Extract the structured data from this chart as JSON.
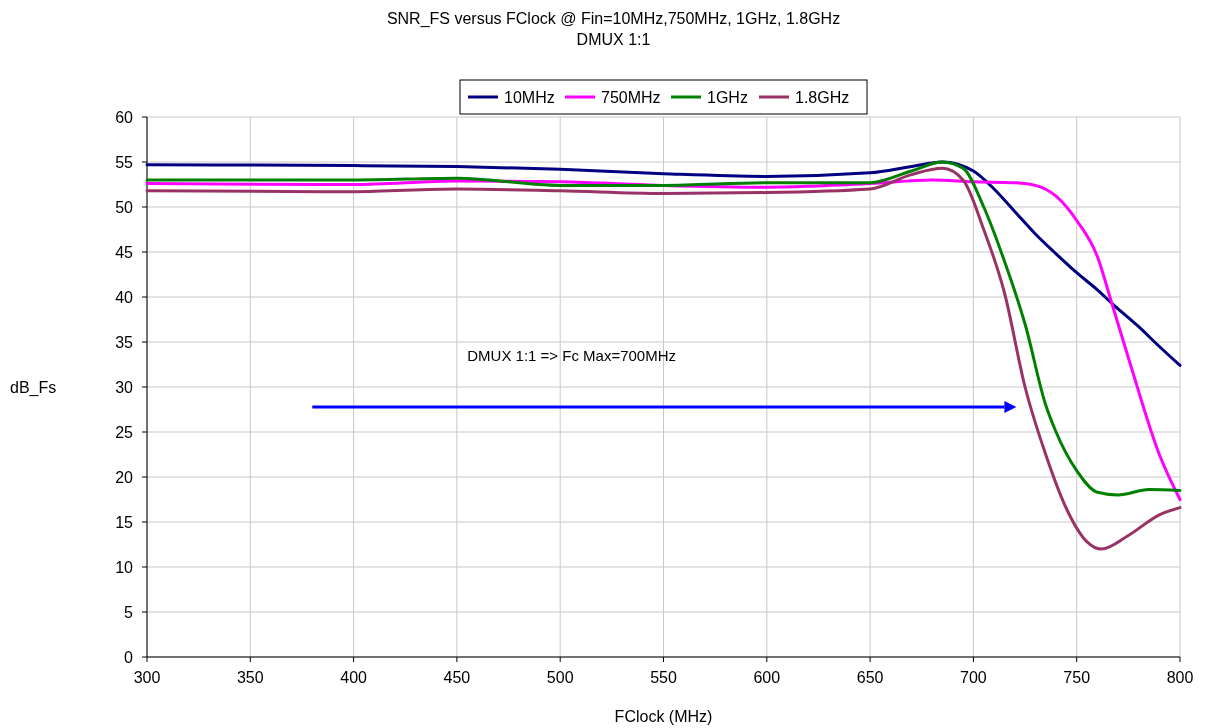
{
  "chart_data": {
    "type": "line",
    "title": "SNR_FS versus FClock @ Fin=10MHz,750MHz, 1GHz, 1.8GHz",
    "subtitle": "DMUX 1:1",
    "xlabel": "FClock (MHz)",
    "ylabel": "dB_Fs",
    "xlim": [
      300,
      800
    ],
    "xticks": [
      300,
      350,
      400,
      450,
      500,
      550,
      600,
      650,
      700,
      750,
      800
    ],
    "ylim": [
      0,
      60
    ],
    "yticks": [
      0,
      5,
      10,
      15,
      20,
      25,
      30,
      35,
      40,
      45,
      50,
      55,
      60
    ],
    "grid": true,
    "legend": "top",
    "marker": "none",
    "line_style": "solid",
    "annotations": [
      "DMUX 1:1 => Fc Max=700MHz"
    ],
    "series": [
      {
        "name": "10MHz",
        "color": "#000080",
        "x": [
          300,
          400,
          450,
          500,
          550,
          600,
          650,
          670,
          685,
          700,
          710,
          720,
          730,
          740,
          750,
          760,
          767,
          780,
          790,
          800
        ],
        "values": [
          54.7,
          54.6,
          54.5,
          54.2,
          53.7,
          53.4,
          53.8,
          54.5,
          55.0,
          54.0,
          52,
          49.5,
          47,
          44.8,
          42.7,
          40.8,
          39.3,
          36.7,
          34.5,
          32.4
        ]
      },
      {
        "name": "750MHz",
        "color": "#ff00ff",
        "x": [
          300,
          400,
          450,
          500,
          550,
          600,
          650,
          680,
          700,
          720,
          730,
          740,
          750,
          760,
          767,
          776,
          790,
          800
        ],
        "values": [
          52.6,
          52.5,
          52.9,
          52.8,
          52.4,
          52.2,
          52.6,
          53.0,
          52.8,
          52.7,
          52.4,
          51.2,
          48.5,
          44.5,
          39.3,
          32.5,
          22.5,
          17.5
        ]
      },
      {
        "name": "1GHz",
        "color": "#008000",
        "x": [
          300,
          400,
          450,
          500,
          550,
          600,
          650,
          670,
          685,
          695,
          705,
          715,
          725,
          735,
          740,
          750,
          760,
          770,
          785,
          800
        ],
        "values": [
          53.0,
          53.0,
          53.2,
          52.4,
          52.4,
          52.7,
          52.7,
          54.0,
          55.0,
          54.3,
          50,
          44,
          37,
          28,
          25,
          20.7,
          18.3,
          18.0,
          18.6,
          18.5
        ]
      },
      {
        "name": "1.8GHz",
        "color": "#993366",
        "x": [
          300,
          400,
          450,
          500,
          550,
          600,
          650,
          670,
          685,
          695,
          705,
          715,
          725,
          735,
          745,
          755,
          762,
          775,
          790,
          800
        ],
        "values": [
          51.8,
          51.7,
          52.0,
          51.8,
          51.5,
          51.6,
          52.0,
          53.6,
          54.3,
          53.0,
          47.5,
          40.5,
          30,
          22.5,
          16.5,
          12.8,
          12.0,
          13.5,
          15.8,
          16.6
        ]
      }
    ]
  }
}
